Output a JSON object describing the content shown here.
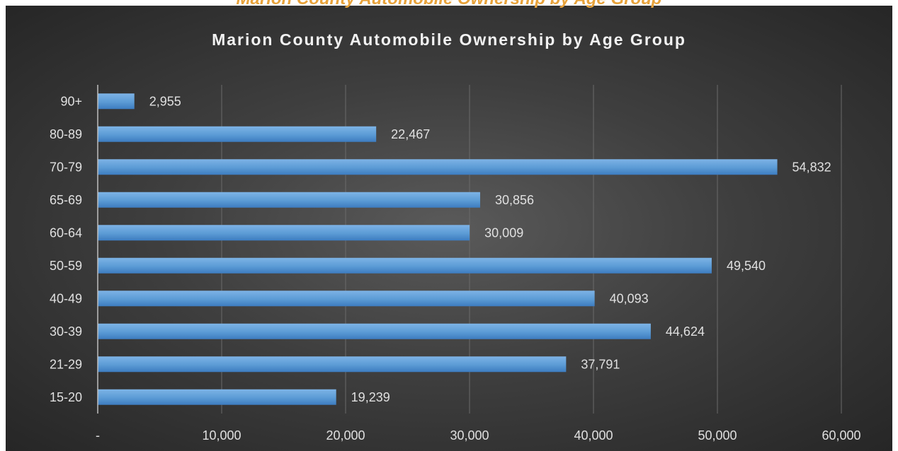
{
  "top_caption": "Marion County Automobile Ownership by Age Group",
  "colors": {
    "bar": "#5b9bd5",
    "bar_dark": "#3d7cc0",
    "grid": "#6a6a6a",
    "text": "#e0e0e0",
    "caption": "#e8a33c"
  },
  "chart_data": {
    "type": "bar",
    "orientation": "horizontal",
    "title": "Marion County Automobile Ownership by Age Group",
    "xlabel": "",
    "ylabel": "",
    "categories": [
      "90+",
      "80-89",
      "70-79",
      "65-69",
      "60-64",
      "50-59",
      "40-49",
      "30-39",
      "21-29",
      "15-20"
    ],
    "values": [
      2955,
      22467,
      54832,
      30856,
      30009,
      49540,
      40093,
      44624,
      37791,
      19239
    ],
    "data_labels": [
      "2,955",
      "22,467",
      "54,832",
      "30,856",
      "30,009",
      "49,540",
      "40,093",
      "44,624",
      "37,791",
      "19,239"
    ],
    "xlim": [
      0,
      60000
    ],
    "x_ticks": [
      0,
      10000,
      20000,
      30000,
      40000,
      50000,
      60000
    ],
    "x_tick_labels": [
      "-",
      "10,000",
      "20,000",
      "30,000",
      "40,000",
      "50,000",
      "60,000"
    ],
    "grid": "vertical",
    "legend": "none"
  }
}
